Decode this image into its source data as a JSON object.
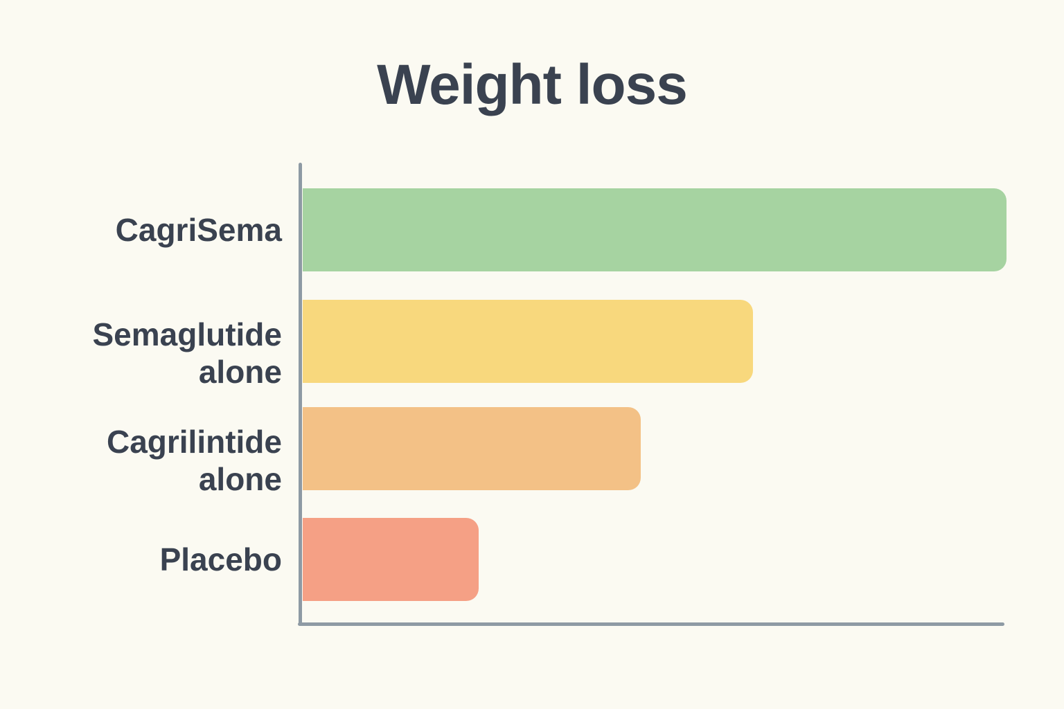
{
  "page": {
    "background_color": "#fbfaf2",
    "text_color": "#3a4250",
    "axis_color": "#8e9aa4"
  },
  "chart_data": {
    "type": "bar",
    "orientation": "horizontal",
    "title": "Weight loss",
    "categories": [
      "CagriSema",
      "Semaglutide alone",
      "Cagrilintide alone",
      "Placebo"
    ],
    "category_lines": [
      [
        "CagriSema"
      ],
      [
        "Semaglutide",
        "alone"
      ],
      [
        "Cagrilintide",
        "alone"
      ],
      [
        "Placebo"
      ]
    ],
    "values": [
      100,
      64,
      48,
      25
    ],
    "value_note": "relative bar lengths as percent of longest bar; no numeric axis, tick labels, or gridlines are shown",
    "bar_colors": [
      "#a6d3a1",
      "#f8d87d",
      "#f3c186",
      "#f5a085"
    ],
    "xlabel": "",
    "ylabel": "",
    "xlim": [
      0,
      100
    ],
    "grid": false,
    "legend": false
  }
}
